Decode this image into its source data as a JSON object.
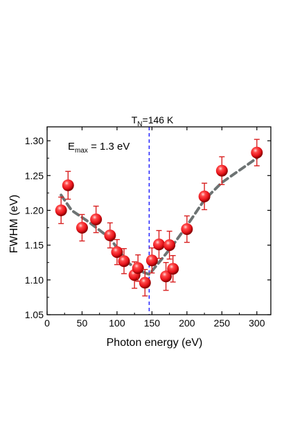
{
  "chart_data": {
    "type": "scatter",
    "xlabel": "Photon energy (eV)",
    "ylabel": "FWHM (eV)",
    "xlim": [
      0,
      320
    ],
    "ylim": [
      1.05,
      1.32
    ],
    "xticks": [
      0,
      50,
      100,
      150,
      200,
      250,
      300
    ],
    "xtick_labels": [
      "0",
      "50",
      "100",
      "150",
      "200",
      "250",
      "300"
    ],
    "yticks": [
      1.05,
      1.1,
      1.15,
      1.2,
      1.25,
      1.3
    ],
    "ytick_labels": [
      "1.05",
      "1.10",
      "1.15",
      "1.20",
      "1.25",
      "1.30"
    ],
    "grid": false,
    "annotation": {
      "main": "E",
      "sub": "max",
      "rest": " = 1.3 eV"
    },
    "vline": {
      "x": 146,
      "label_main": "T",
      "label_sub": "N",
      "label_rest": "=146 K",
      "color": "#1a1aff"
    },
    "series": [
      {
        "marker_color": "#e8141b",
        "errorbar_color": "#d81f1f",
        "x": [
          20,
          30,
          50,
          70,
          90,
          100,
          110,
          125,
          130,
          140,
          150,
          160,
          170,
          175,
          180,
          200,
          225,
          250,
          300
        ],
        "y": [
          1.2,
          1.236,
          1.175,
          1.187,
          1.164,
          1.14,
          1.127,
          1.107,
          1.117,
          1.096,
          1.128,
          1.151,
          1.105,
          1.15,
          1.116,
          1.173,
          1.22,
          1.257,
          1.283
        ],
        "err": [
          0.019,
          0.02,
          0.019,
          0.019,
          0.018,
          0.018,
          0.018,
          0.019,
          0.019,
          0.019,
          0.018,
          0.02,
          0.02,
          0.02,
          0.019,
          0.019,
          0.019,
          0.02,
          0.019
        ]
      }
    ],
    "trend_line": {
      "color": "#6d7373",
      "x": [
        20,
        35,
        60,
        90,
        115,
        135,
        146,
        160,
        180,
        200,
        225,
        250,
        300
      ],
      "y": [
        1.222,
        1.2,
        1.183,
        1.16,
        1.125,
        1.112,
        1.108,
        1.125,
        1.15,
        1.178,
        1.215,
        1.24,
        1.275
      ]
    }
  }
}
